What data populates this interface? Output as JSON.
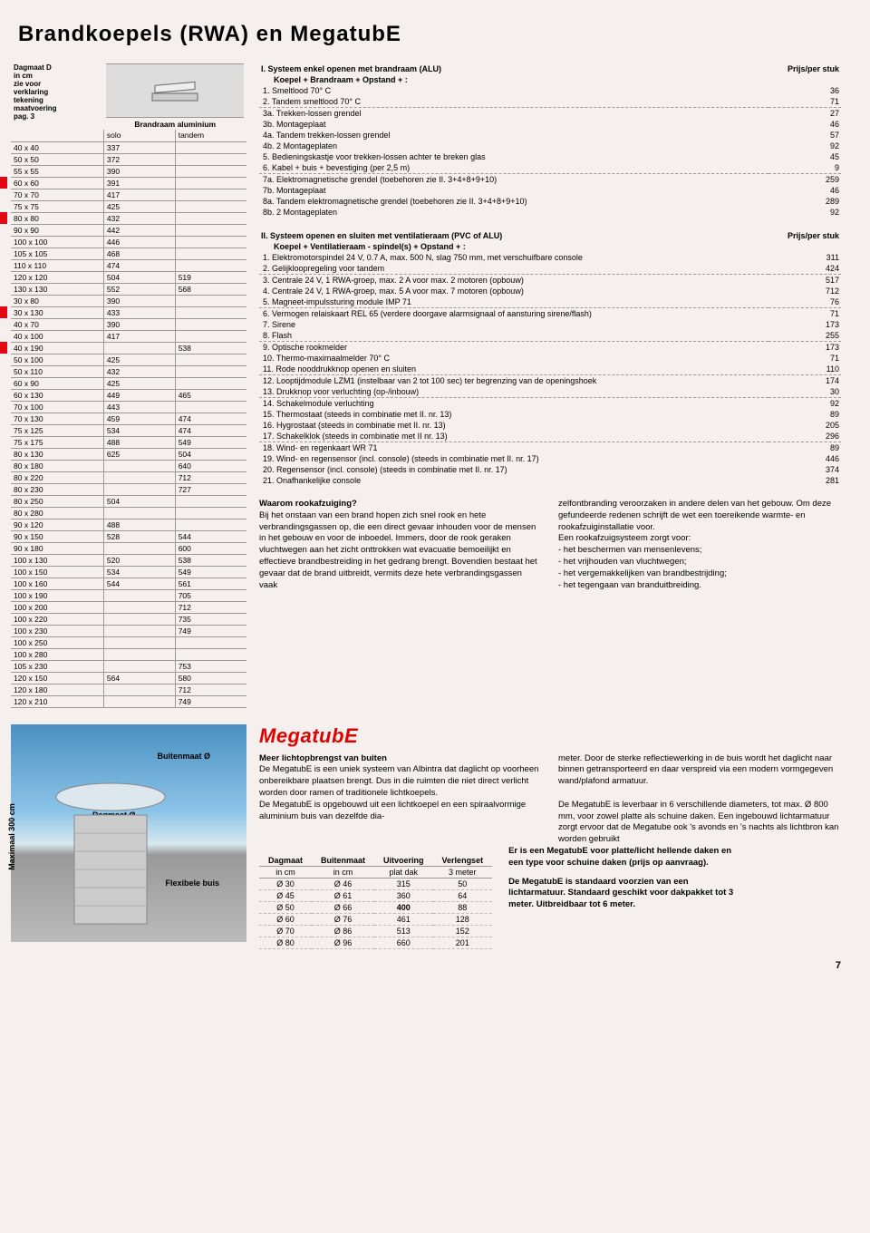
{
  "title": "Brandkoepels (RWA) en MegatubE",
  "pageNumber": "7",
  "sizeTable": {
    "headerNote": "Dagmaat D\nin cm\nzie voor\nverklaring\ntekening\nmaatvoering\npag. 3",
    "col2label": "Brandraam aluminium",
    "col2a": "solo",
    "col2b": "tandem",
    "rows": [
      [
        "40 x 40",
        "337",
        "",
        ""
      ],
      [
        "50 x 50",
        "372",
        "",
        ""
      ],
      [
        "55 x 55",
        "390",
        "",
        ""
      ],
      [
        "60 x 60",
        "391",
        "",
        "red"
      ],
      [
        "70 x 70",
        "417",
        "",
        ""
      ],
      [
        "75 x 75",
        "425",
        "",
        ""
      ],
      [
        "80 x 80",
        "432",
        "",
        "red"
      ],
      [
        "90 x 90",
        "442",
        "",
        ""
      ],
      [
        "100 x 100",
        "446",
        "",
        ""
      ],
      [
        "105 x 105",
        "468",
        "",
        ""
      ],
      [
        "110 x 110",
        "474",
        "",
        ""
      ],
      [
        "120 x 120",
        "504",
        "519",
        ""
      ],
      [
        "130 x 130",
        "552",
        "568",
        ""
      ],
      [
        "30 x  80",
        "390",
        "",
        ""
      ],
      [
        "30 x 130",
        "433",
        "",
        "red"
      ],
      [
        "40 x  70",
        "390",
        "",
        ""
      ],
      [
        "40 x 100",
        "417",
        "",
        ""
      ],
      [
        "40 x 190",
        "",
        "538",
        "red"
      ],
      [
        "50 x 100",
        "425",
        "",
        ""
      ],
      [
        "50 x 110",
        "432",
        "",
        ""
      ],
      [
        "60 x  90",
        "425",
        "",
        ""
      ],
      [
        "60 x 130",
        "449",
        "465",
        ""
      ],
      [
        "70 x 100",
        "443",
        "",
        ""
      ],
      [
        "70 x 130",
        "459",
        "474",
        ""
      ],
      [
        "75 x 125",
        "534",
        "474",
        ""
      ],
      [
        "75 x 175",
        "488",
        "549",
        ""
      ],
      [
        "80 x 130",
        "625",
        "504",
        ""
      ],
      [
        "80 x 180",
        "",
        "640",
        ""
      ],
      [
        "80 x 220",
        "",
        "712",
        ""
      ],
      [
        "80 x 230",
        "",
        "727",
        ""
      ],
      [
        "80 x 250",
        "504",
        "",
        ""
      ],
      [
        "80 x 280",
        "",
        "",
        ""
      ],
      [
        "90 x 120",
        "488",
        "",
        ""
      ],
      [
        "90 x 150",
        "528",
        "544",
        ""
      ],
      [
        "90 x 180",
        "",
        "600",
        ""
      ],
      [
        "100 x 130",
        "520",
        "538",
        ""
      ],
      [
        "100 x 150",
        "534",
        "549",
        ""
      ],
      [
        "100 x 160",
        "544",
        "561",
        ""
      ],
      [
        "100 x 190",
        "",
        "705",
        ""
      ],
      [
        "100 x 200",
        "",
        "712",
        ""
      ],
      [
        "100 x 220",
        "",
        "735",
        ""
      ],
      [
        "100 x 230",
        "",
        "749",
        ""
      ],
      [
        "100 x 250",
        "",
        "",
        ""
      ],
      [
        "100 x 280",
        "",
        "",
        ""
      ],
      [
        "105 x 230",
        "",
        "753",
        ""
      ],
      [
        "120 x 150",
        "564",
        "580",
        ""
      ],
      [
        "120 x 180",
        "",
        "712",
        ""
      ],
      [
        "120 x 210",
        "",
        "749",
        ""
      ]
    ]
  },
  "priceSection1": {
    "title": "I. Systeem enkel openen met brandraam (ALU)",
    "subtitle": "Koepel + Brandraam + Opstand + :",
    "priceHdr": "Prijs/per stuk",
    "groups": [
      {
        "items": [
          [
            "1. Smeltlood 70° C",
            "36"
          ],
          [
            "2. Tandem smeltlood 70° C",
            "71"
          ]
        ]
      },
      {
        "items": [
          [
            "3a. Trekken-lossen grendel",
            "27"
          ],
          [
            "3b. Montageplaat",
            "46"
          ],
          [
            "4a. Tandem trekken-lossen grendel",
            "57"
          ],
          [
            "4b. 2 Montageplaten",
            "92"
          ],
          [
            " 5. Bedieningskastje voor trekken-lossen achter te breken glas",
            "45"
          ],
          [
            " 6. Kabel + buis + bevestiging (per 2,5 m)",
            "9"
          ]
        ]
      },
      {
        "items": [
          [
            "7a. Elektromagnetische grendel (toebehoren zie II. 3+4+8+9+10)",
            "259"
          ],
          [
            "7b. Montageplaat",
            "46"
          ],
          [
            "8a. Tandem elektromagnetische grendel (toebehoren zie II. 3+4+8+9+10)",
            "289"
          ],
          [
            "8b. 2 Montageplaten",
            "92"
          ]
        ]
      }
    ]
  },
  "priceSection2": {
    "title": "II. Systeem openen en sluiten met ventilatieraam (PVC of ALU)",
    "subtitle": "Koepel + Ventilatieraam - spindel(s) + Opstand + :",
    "priceHdr": "Prijs/per stuk",
    "groups": [
      {
        "items": [
          [
            " 1. Elektromotorspindel 24 V, 0.7 A, max. 500 N, slag 750 mm, met verschuifbare console",
            "311"
          ],
          [
            " 2. Gelijkloopregeling voor tandem",
            "424"
          ]
        ]
      },
      {
        "items": [
          [
            " 3. Centrale 24 V, 1 RWA-groep, max. 2 A voor max. 2 motoren (opbouw)",
            "517"
          ],
          [
            " 4. Centrale 24 V, 1 RWA-groep, max. 5 A voor max. 7 motoren (opbouw)",
            "712"
          ],
          [
            " 5. Magneet-impulssturing module IMP 71",
            "76"
          ]
        ]
      },
      {
        "items": [
          [
            " 6. Vermogen relaiskaart REL 65 (verdere doorgave alarmsignaal of aansturing sirene/flash)",
            "71"
          ],
          [
            " 7. Sirene",
            "173"
          ],
          [
            " 8. Flash",
            "255"
          ]
        ]
      },
      {
        "items": [
          [
            " 9. Optische rookmelder",
            "173"
          ],
          [
            "10. Thermo-maximaalmelder 70° C",
            "71"
          ],
          [
            "11. Rode nooddrukknop openen en sluiten",
            "110"
          ]
        ]
      },
      {
        "items": [
          [
            "12. Looptijdmodule LZM1 (instelbaar van 2 tot 100 sec) ter begrenzing van de openingshoek",
            "174"
          ],
          [
            "13. Drukknop voor verluchting (op-/inbouw)",
            "30"
          ]
        ]
      },
      {
        "items": [
          [
            "14. Schakelmodule verluchting",
            "92"
          ],
          [
            "15. Thermostaat (steeds in combinatie met II. nr. 13)",
            "89"
          ],
          [
            "16. Hygrostaat (steeds in combinatie met II. nr. 13)",
            "205"
          ],
          [
            "17. Schakelklok (steeds in combinatie met II nr. 13)",
            "296"
          ]
        ]
      },
      {
        "items": [
          [
            "18. Wind- en regenkaart WR 71",
            "89"
          ],
          [
            "19. Wind- en regensensor (incl. console) (steeds in combinatie met II. nr. 17)",
            "446"
          ],
          [
            "20. Regensensor (incl. console) (steeds in combinatie met II. nr. 17)",
            "374"
          ],
          [
            "21. Onafhankelijke console",
            "281"
          ]
        ]
      }
    ]
  },
  "waarom": {
    "title": "Waarom rookafzuiging?",
    "col1": "Bij het onstaan van een brand hopen zich snel rook en hete verbrandingsgassen op, die een direct gevaar inhouden voor de mensen in het gebouw en voor de inboedel. Immers, door de rook geraken vluchtwegen aan het zicht onttrokken wat evacuatie bemoeilijkt en effectieve brandbestreiding in het gedrang brengt. Bovendien bestaat het gevaar dat de brand uitbreidt, vermits deze hete verbrandingsgassen vaak",
    "col2a": "zelfontbranding veroorzaken in andere delen van het gebouw. Om deze gefundeerde redenen schrijft de wet een toereikende warmte- en rookafzuiginstallatie voor.",
    "col2b": "Een rookafzuigsysteem zorgt voor:",
    "col2list": [
      "- het beschermen van mensenlevens;",
      "- het vrijhouden van vluchtwegen;",
      "- het vergemakkelijken van brandbestrijding;",
      "- het tegengaan van branduitbreiding."
    ]
  },
  "megatube": {
    "logo": "MegatubE",
    "labels": {
      "buitenmaat": "Buitenmaat Ø",
      "dagmaat": "Dagmaat Ø",
      "flex": "Flexibele buis",
      "max": "Maximaal 300 cm"
    },
    "heading": "Meer lichtopbrengst van buiten",
    "txt1": "De MegatubE is een uniek systeem van Albintra dat daglicht op voorheen onbereikbare plaatsen brengt. Dus in die ruimten die niet direct verlicht worden door ramen of traditionele lichtkoepels.\nDe MegatubE is opgebouwd uit een lichtkoepel en een spiraalvormige aluminium buis van dezelfde dia-",
    "txt2": "meter. Door de sterke reflectiewerking in de buis wordt het daglicht naar binnen getransporteerd en daar verspreid via een modern vormgegeven wand/plafond armatuur.\n\nDe MegatubE is leverbaar in 6 verschillende diameters, tot max. Ø 800 mm, voor zowel platte als schuine daken. Een ingebouwd lichtarmatuur zorgt ervoor dat de Megatube ook 's avonds en 's nachts als lichtbron kan worden gebruikt",
    "sidenote1": "Er is een MegatubE voor platte/licht hellende daken en een type voor schuine daken (prijs op aanvraag).",
    "sidenote2": "De MegatubE is standaard voorzien van een lichtarmatuur. Standaard geschikt voor dakpakket tot 3 meter. Uitbreidbaar tot 6 meter.",
    "table": {
      "headers": [
        "Dagmaat",
        "Buitenmaat",
        "Uitvoering",
        "Verlengset"
      ],
      "sub": [
        "in cm",
        "in cm",
        "plat dak",
        "3 meter"
      ],
      "rows": [
        [
          "Ø 30",
          "Ø 46",
          "315",
          "50"
        ],
        [
          "Ø 45",
          "Ø 61",
          "360",
          "64"
        ],
        [
          "Ø 50",
          "Ø 66",
          "400",
          "88"
        ],
        [
          "Ø 60",
          "Ø 76",
          "461",
          "128"
        ],
        [
          "Ø 70",
          "Ø 86",
          "513",
          "152"
        ],
        [
          "Ø 80",
          "Ø 96",
          "660",
          "201"
        ]
      ]
    }
  }
}
